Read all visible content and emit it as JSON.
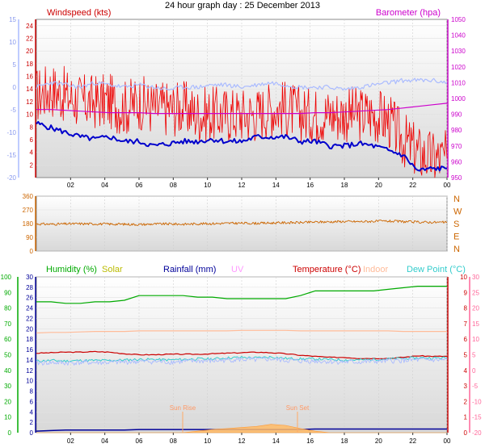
{
  "chart_data": [
    {
      "type": "line",
      "title": "24 hour graph day : 25 December 2013",
      "x_ticks": [
        "02",
        "04",
        "06",
        "08",
        "10",
        "12",
        "14",
        "16",
        "18",
        "20",
        "22",
        "00"
      ],
      "left_axis": {
        "label": "Windspeed (kts)",
        "ylim": [
          0,
          25
        ],
        "ticks": [
          "2",
          "4",
          "6",
          "8",
          "10",
          "12",
          "14",
          "16",
          "18",
          "20",
          "22",
          "24"
        ]
      },
      "temp_axis": {
        "ylim": [
          -20,
          15
        ],
        "ticks": [
          "-20",
          "-15",
          "-10",
          "-5",
          "0",
          "5",
          "10",
          "15"
        ]
      },
      "right_axis": {
        "label": "Barometer (hpa)",
        "ylim": [
          950,
          1050
        ],
        "ticks": [
          "950",
          "960",
          "970",
          "980",
          "990",
          "1000",
          "1010",
          "1020",
          "1030",
          "1040",
          "1050"
        ]
      },
      "series": [
        {
          "name": "Windspeed",
          "color": "#ee0000",
          "axis": "left",
          "values": [
            13,
            14,
            13,
            12,
            12,
            12,
            11,
            12,
            11,
            11,
            11,
            10,
            10,
            10,
            10,
            10,
            11,
            11,
            10,
            10,
            10,
            10,
            10,
            10,
            9,
            6,
            4,
            3,
            3
          ]
        },
        {
          "color": "#0000cc",
          "axis": "temp",
          "values": [
            -8,
            -9,
            -10,
            -11,
            -11.5,
            -11,
            -12,
            -12,
            -13,
            -12.5,
            -12,
            -12,
            -11.5,
            -12,
            -12,
            -11,
            -11,
            -11,
            -12,
            -12,
            -13,
            -13,
            -12.5,
            -13,
            -14,
            -15,
            -18.5,
            -18,
            -18
          ]
        },
        {
          "color": "#aabbff",
          "axis": "temp",
          "values": [
            0,
            1,
            0.5,
            0,
            1,
            0.5,
            0,
            0.5,
            0,
            -0.5,
            0,
            0,
            0.5,
            0.5,
            0,
            0.5,
            1,
            0.5,
            0,
            0,
            0,
            -0.5,
            0,
            0.5,
            1,
            1.5,
            1.5,
            1.5,
            1
          ]
        },
        {
          "name": "Barometer",
          "color": "#cc00cc",
          "axis": "right",
          "values": [
            993,
            993,
            992.5,
            992,
            991.5,
            991,
            991,
            991,
            990.5,
            990.5,
            990.5,
            990.5,
            990.5,
            990.5,
            990.5,
            990.5,
            990.5,
            990.5,
            990.5,
            991,
            991,
            991.5,
            992,
            992.5,
            993,
            994,
            995,
            996,
            997
          ]
        }
      ]
    },
    {
      "type": "line",
      "ylim": [
        0,
        360
      ],
      "y_ticks": [
        "0",
        "90",
        "180",
        "270",
        "360"
      ],
      "compass_labels": [
        "N",
        "W",
        "S",
        "E",
        "N"
      ],
      "series": [
        {
          "color": "#cc6600",
          "values": [
            178,
            176,
            178,
            179,
            178,
            177,
            176,
            174,
            177,
            178,
            176,
            179,
            180,
            182,
            183,
            182,
            184,
            186,
            187,
            190,
            192,
            194,
            193,
            195,
            196,
            193,
            190,
            189,
            188
          ]
        }
      ]
    },
    {
      "type": "line",
      "headers": [
        "Humidity (%)",
        "Solar",
        "Rainfall (mm)",
        "UV",
        "Temperature (°C)",
        "Indoor",
        "Dew Point (°C)"
      ],
      "header_colors": [
        "#00aa00",
        "#bbbb00",
        "#000099",
        "#ff99ff",
        "#cc0000",
        "#ffbb99",
        "#33cccc"
      ],
      "x_ticks": [
        "02",
        "04",
        "06",
        "08",
        "10",
        "12",
        "14",
        "16",
        "18",
        "20",
        "22",
        "00"
      ],
      "humidity_axis": {
        "ylim": [
          0,
          100
        ],
        "ticks": [
          "0",
          "10",
          "20",
          "30",
          "40",
          "50",
          "60",
          "70",
          "80",
          "90",
          "100"
        ]
      },
      "rain_axis": {
        "ylim": [
          0,
          30
        ],
        "ticks": [
          "0",
          "2",
          "4",
          "6",
          "8",
          "10",
          "12",
          "14",
          "16",
          "18",
          "20",
          "22",
          "24",
          "26",
          "28",
          "30"
        ]
      },
      "temp_axis": {
        "ylim": [
          -20,
          10
        ],
        "ticks": [
          "10",
          "9",
          "8",
          "7",
          "6",
          "5",
          "4",
          "3",
          "2",
          "1",
          "0"
        ]
      },
      "extra_axis": {
        "ticks": [
          "30",
          "25",
          "20",
          "15",
          "10",
          "5",
          "0",
          "-5",
          "-10",
          "-15",
          "-20"
        ]
      },
      "annotations": {
        "sunrise": "Sun Rise",
        "sunset": "Sun Set"
      },
      "series": [
        {
          "name": "Humidity",
          "color": "#00aa00",
          "axis": "humidity",
          "values": [
            84,
            84,
            83,
            83,
            84,
            84,
            85,
            88,
            88,
            88,
            88,
            87,
            87,
            86,
            86,
            86,
            86,
            86,
            88,
            91,
            91,
            91,
            91,
            91,
            92,
            93,
            94,
            94,
            94
          ]
        },
        {
          "name": "Indoor",
          "color": "#ffbb99",
          "axis": "rain",
          "values": [
            19.2,
            19.3,
            19.3,
            19.4,
            19.5,
            19.5,
            19.5,
            19.6,
            19.6,
            19.6,
            19.6,
            19.6,
            19.6,
            19.6,
            19.7,
            19.7,
            19.7,
            19.7,
            19.6,
            19.6,
            19.6,
            19.6,
            19.6,
            19.6,
            19.6,
            19.5,
            19.5,
            19.5,
            19.5
          ]
        },
        {
          "name": "Temperature",
          "color": "#cc0000",
          "axis": "rain",
          "values": [
            15.3,
            15.4,
            15.5,
            15.5,
            15.6,
            15.5,
            15.2,
            15.0,
            15.0,
            15.1,
            15.1,
            15.1,
            15.2,
            15.3,
            15.4,
            15.5,
            15.4,
            15.2,
            14.9,
            14.7,
            14.5,
            14.5,
            14.3,
            14.3,
            14.3,
            14.5,
            14.8,
            14.7,
            14.7
          ]
        },
        {
          "name": "Dew Point",
          "color": "#33cccc",
          "axis": "rain",
          "values": [
            13.8,
            13.9,
            13.8,
            13.9,
            13.9,
            13.9,
            14.0,
            14.1,
            14.1,
            14.0,
            14.1,
            14.2,
            14.2,
            14.4,
            14.5,
            14.4,
            14.6,
            14.3,
            14.2,
            14.2,
            14.1,
            14.0,
            14.0,
            14.1,
            14.2,
            14.3,
            14.4,
            14.4,
            14.4
          ]
        },
        {
          "color": "#aabbff",
          "axis": "rain",
          "values": [
            13.4,
            13.5,
            13.4,
            13.5,
            13.5,
            13.5,
            13.6,
            13.7,
            13.7,
            13.6,
            13.7,
            13.8,
            13.8,
            14.0,
            14.1,
            14.0,
            14.2,
            13.9,
            13.8,
            13.8,
            13.7,
            13.6,
            13.6,
            13.7,
            13.8,
            13.9,
            14.0,
            14.0,
            14.0
          ]
        },
        {
          "name": "Rainfall",
          "color": "#000099",
          "axis": "rain",
          "values": [
            0.3,
            0.4,
            0.5,
            0.5,
            0.5,
            0.5,
            0.5,
            0.6,
            0.6,
            0.6,
            0.6,
            0.6,
            0.6,
            0.6,
            0.6,
            0.6,
            0.6,
            0.6,
            0.6,
            0.7,
            0.7,
            0.7,
            0.7,
            0.7,
            0.7,
            0.7,
            0.7,
            0.7,
            0.7
          ]
        },
        {
          "name": "Solar",
          "color": "#ffbb66",
          "axis": "rain",
          "values": [
            0,
            0,
            0,
            0,
            0,
            0,
            0,
            0,
            0,
            0,
            0,
            0.3,
            0.6,
            0.8,
            1.0,
            1.2,
            1.6,
            1.4,
            0.8,
            0.3,
            0,
            0,
            0,
            0,
            0,
            0,
            0,
            0,
            0
          ]
        }
      ]
    }
  ]
}
